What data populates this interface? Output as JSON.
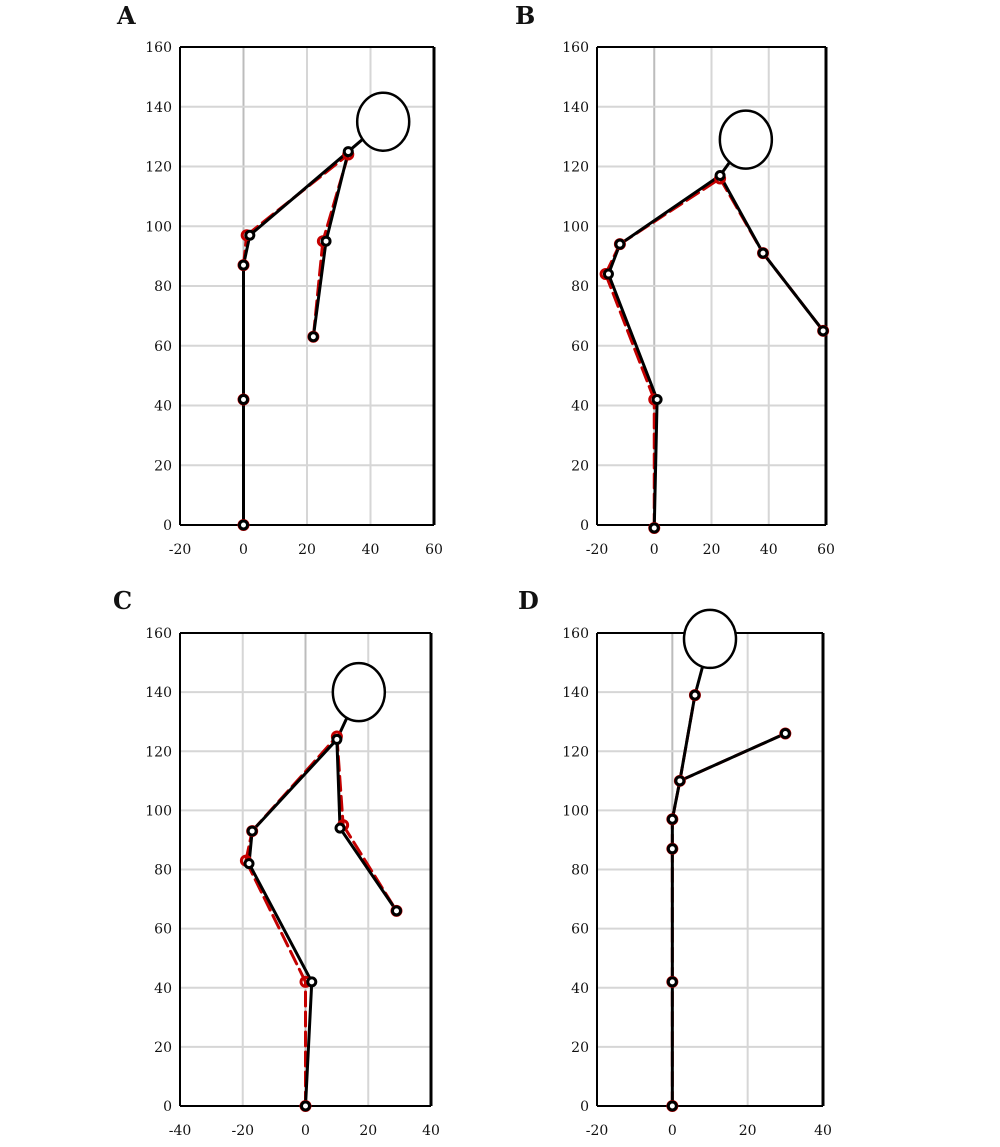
{
  "chart_data": [
    {
      "type": "scatter",
      "panel_label": "A",
      "xlim": [
        -20,
        60
      ],
      "ylim": [
        0,
        160
      ],
      "xticks": [
        -20,
        0,
        20,
        40,
        60
      ],
      "yticks": [
        0,
        20,
        40,
        60,
        80,
        100,
        120,
        140,
        160
      ],
      "grid": true,
      "head": [
        44,
        135
      ],
      "series": [
        {
          "style": "measured",
          "color": "#000000",
          "points": [
            [
              0,
              0
            ],
            [
              0,
              42
            ],
            [
              0,
              87
            ],
            [
              2,
              97
            ],
            [
              33,
              125
            ],
            [
              26,
              95
            ],
            [
              22,
              63
            ]
          ]
        },
        {
          "style": "reference",
          "color": "#c40000",
          "points": [
            [
              0,
              0
            ],
            [
              0,
              42
            ],
            [
              0,
              87
            ],
            [
              1,
              97
            ],
            [
              33,
              124
            ],
            [
              25,
              95
            ],
            [
              22,
              63
            ]
          ]
        }
      ]
    },
    {
      "type": "scatter",
      "panel_label": "B",
      "xlim": [
        -20,
        60
      ],
      "ylim": [
        0,
        160
      ],
      "xticks": [
        -20,
        0,
        20,
        40,
        60
      ],
      "yticks": [
        0,
        20,
        40,
        60,
        80,
        100,
        120,
        140,
        160
      ],
      "grid": true,
      "head": [
        32,
        129
      ],
      "series": [
        {
          "style": "measured",
          "color": "#000000",
          "points": [
            [
              0,
              -1
            ],
            [
              1,
              42
            ],
            [
              -16,
              84
            ],
            [
              -12,
              94
            ],
            [
              23,
              117
            ],
            [
              38,
              91
            ],
            [
              59,
              65
            ]
          ]
        },
        {
          "style": "reference",
          "color": "#c40000",
          "points": [
            [
              0,
              -1
            ],
            [
              0,
              42
            ],
            [
              -17,
              84
            ],
            [
              -12,
              94
            ],
            [
              23,
              116
            ],
            [
              38,
              91
            ],
            [
              59,
              65
            ]
          ]
        }
      ]
    },
    {
      "type": "scatter",
      "panel_label": "C",
      "xlim": [
        -40,
        40
      ],
      "ylim": [
        0,
        160
      ],
      "xticks": [
        -40,
        -20,
        0,
        20,
        40
      ],
      "yticks": [
        0,
        20,
        40,
        60,
        80,
        100,
        120,
        140,
        160
      ],
      "grid": true,
      "head": [
        17,
        140
      ],
      "series": [
        {
          "style": "measured",
          "color": "#000000",
          "points": [
            [
              0,
              0
            ],
            [
              2,
              42
            ],
            [
              -18,
              82
            ],
            [
              -17,
              93
            ],
            [
              10,
              124
            ],
            [
              11,
              94
            ],
            [
              29,
              66
            ]
          ]
        },
        {
          "style": "reference",
          "color": "#c40000",
          "points": [
            [
              0,
              0
            ],
            [
              0,
              42
            ],
            [
              -19,
              83
            ],
            [
              -17,
              93
            ],
            [
              10,
              125
            ],
            [
              12,
              95
            ],
            [
              29,
              66
            ]
          ]
        }
      ]
    },
    {
      "type": "scatter",
      "panel_label": "D",
      "xlim": [
        -20,
        40
      ],
      "ylim": [
        0,
        160
      ],
      "xticks": [
        -20,
        0,
        20,
        40
      ],
      "yticks": [
        0,
        20,
        40,
        60,
        80,
        100,
        120,
        140,
        160
      ],
      "grid": true,
      "head": [
        10,
        158
      ],
      "series": [
        {
          "style": "measured",
          "color": "#000000",
          "points": [
            [
              0,
              0
            ],
            [
              0,
              42
            ],
            [
              0,
              87
            ],
            [
              0,
              97
            ],
            [
              2,
              110
            ],
            [
              30,
              126
            ],
            [
              6,
              139
            ]
          ]
        },
        {
          "style": "reference",
          "color": "#c40000",
          "points": [
            [
              0,
              0
            ],
            [
              0,
              42
            ],
            [
              0,
              87
            ],
            [
              0,
              97
            ],
            [
              2,
              110
            ],
            [
              30,
              126
            ],
            [
              6,
              139
            ]
          ]
        }
      ]
    }
  ]
}
